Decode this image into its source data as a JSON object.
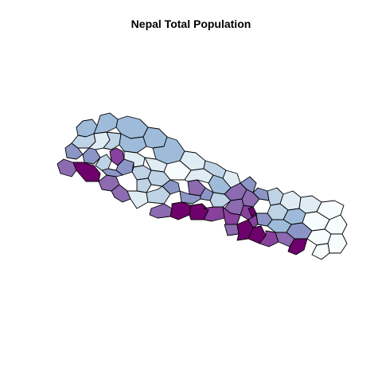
{
  "map": {
    "title": "Nepal Total Population",
    "country": "Nepal",
    "type": "choropleth",
    "palette": {
      "classes": [
        "#f7fcfd",
        "#e0ecf4",
        "#bfd3e6",
        "#9ebcda",
        "#8c96c6",
        "#8c6bb1",
        "#88419d",
        "#6e016b"
      ],
      "outline": "#000000",
      "background": "#ffffff"
    }
  }
}
